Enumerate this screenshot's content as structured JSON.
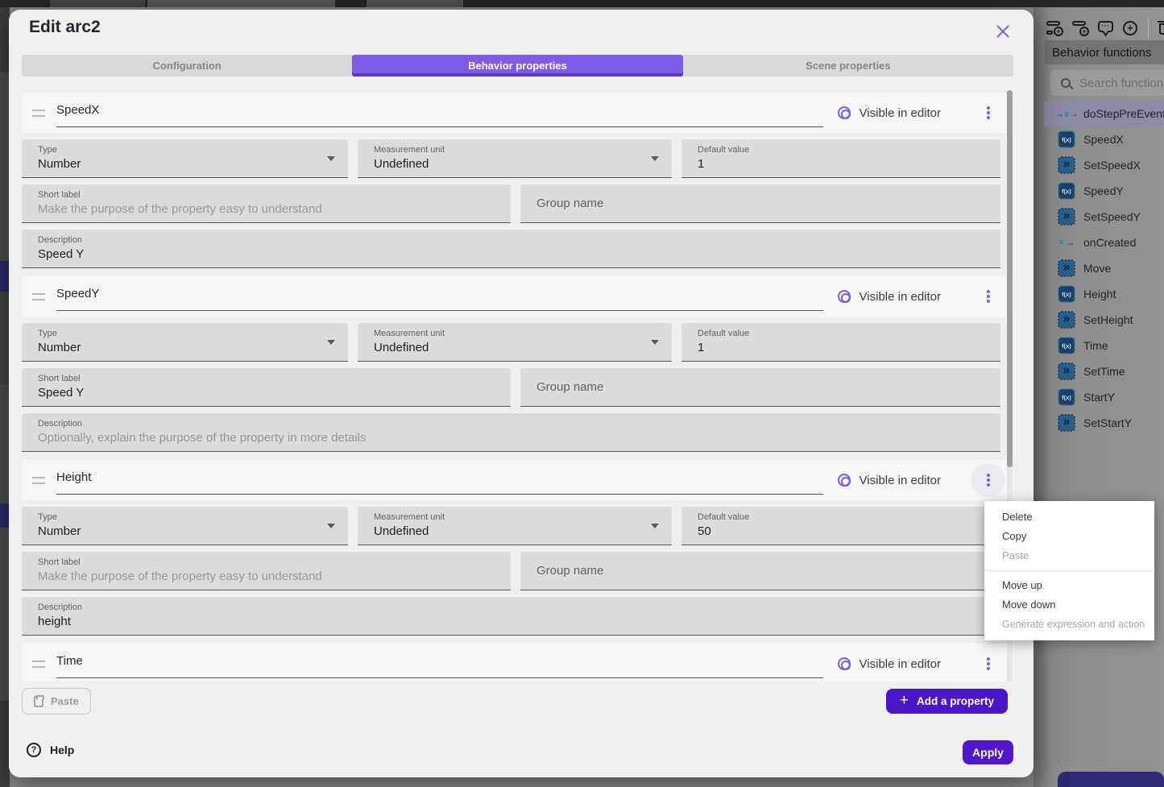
{
  "colors": {
    "accent_purple": "#7c5ce6",
    "button_purple": "#4b15c8",
    "tab_selected_bg": "#7e5ce6",
    "icon_navy": "#1e4066",
    "icon_teal": "#2b8fa4",
    "selected_row_bg": "#8e8ba9"
  },
  "dialog": {
    "title": "Edit arc2",
    "tabs": [
      {
        "label": "Configuration",
        "selected": false
      },
      {
        "label": "Behavior properties",
        "selected": true
      },
      {
        "label": "Scene properties",
        "selected": false
      }
    ],
    "visible_in_editor_label": "Visible in editor",
    "properties": [
      {
        "name": "SpeedX",
        "partial": false,
        "menu_open": false,
        "type": {
          "label": "Type",
          "value": "Number"
        },
        "unit": {
          "label": "Measurement unit",
          "value": "Undefined"
        },
        "default": {
          "label": "Default value",
          "value": "1"
        },
        "short_label": {
          "label": "Short label",
          "value": "",
          "placeholder": "Make the purpose of the property easy to understand"
        },
        "group": {
          "value": "",
          "placeholder": "Group name"
        },
        "description": {
          "label": "Description",
          "value": "Speed Y",
          "placeholder": ""
        }
      },
      {
        "name": "SpeedY",
        "partial": false,
        "menu_open": false,
        "type": {
          "label": "Type",
          "value": "Number"
        },
        "unit": {
          "label": "Measurement unit",
          "value": "Undefined"
        },
        "default": {
          "label": "Default value",
          "value": "1"
        },
        "short_label": {
          "label": "Short label",
          "value": "Speed Y",
          "placeholder": ""
        },
        "group": {
          "value": "",
          "placeholder": "Group name"
        },
        "description": {
          "label": "Description",
          "value": "",
          "placeholder": "Optionally, explain the purpose of the property in more details"
        }
      },
      {
        "name": "Height",
        "partial": false,
        "menu_open": true,
        "type": {
          "label": "Type",
          "value": "Number"
        },
        "unit": {
          "label": "Measurement unit",
          "value": "Undefined"
        },
        "default": {
          "label": "Default value",
          "value": "50"
        },
        "short_label": {
          "label": "Short label",
          "value": "",
          "placeholder": "Make the purpose of the property easy to understand"
        },
        "group": {
          "value": "",
          "placeholder": "Group name"
        },
        "description": {
          "label": "Description",
          "value": "height",
          "placeholder": ""
        }
      },
      {
        "name": "Time",
        "partial": true,
        "menu_open": false
      }
    ],
    "paste_button": "Paste",
    "add_property_button": "Add a property",
    "help_label": "Help",
    "apply_button": "Apply"
  },
  "context_menu": {
    "items": [
      {
        "label": "Delete",
        "enabled": true
      },
      {
        "label": "Copy",
        "enabled": true
      },
      {
        "label": "Paste",
        "enabled": false
      },
      {
        "divider": true
      },
      {
        "label": "Move up",
        "enabled": true
      },
      {
        "label": "Move down",
        "enabled": true
      },
      {
        "label": "Generate expression and action",
        "enabled": false,
        "small": true
      }
    ]
  },
  "side_panel": {
    "header": "Behavior functions",
    "search_placeholder": "Search functions",
    "toolbar_icons": [
      "add-event-icon",
      "add-subevent-icon",
      "comment-icon",
      "add-circle-icon",
      "divider",
      "trash-icon"
    ],
    "icon_glyphs": {
      "expression": "f(x)",
      "action": "»",
      "comment": "···",
      "plus": "+"
    },
    "functions": [
      {
        "name": "doStepPreEvents",
        "icon": "event",
        "selected": true
      },
      {
        "name": "SpeedX",
        "icon": "expression",
        "selected": false
      },
      {
        "name": "SetSpeedX",
        "icon": "action",
        "selected": false
      },
      {
        "name": "SpeedY",
        "icon": "expression",
        "selected": false
      },
      {
        "name": "SetSpeedY",
        "icon": "action",
        "selected": false
      },
      {
        "name": "onCreated",
        "icon": "lifecycle",
        "selected": false
      },
      {
        "name": "Move",
        "icon": "action",
        "selected": false
      },
      {
        "name": "Height",
        "icon": "expression",
        "selected": false
      },
      {
        "name": "SetHeight",
        "icon": "action",
        "selected": false
      },
      {
        "name": "Time",
        "icon": "expression",
        "selected": false
      },
      {
        "name": "SetTime",
        "icon": "action",
        "selected": false
      },
      {
        "name": "StartY",
        "icon": "expression",
        "selected": false
      },
      {
        "name": "SetStartY",
        "icon": "action",
        "selected": false
      }
    ]
  }
}
